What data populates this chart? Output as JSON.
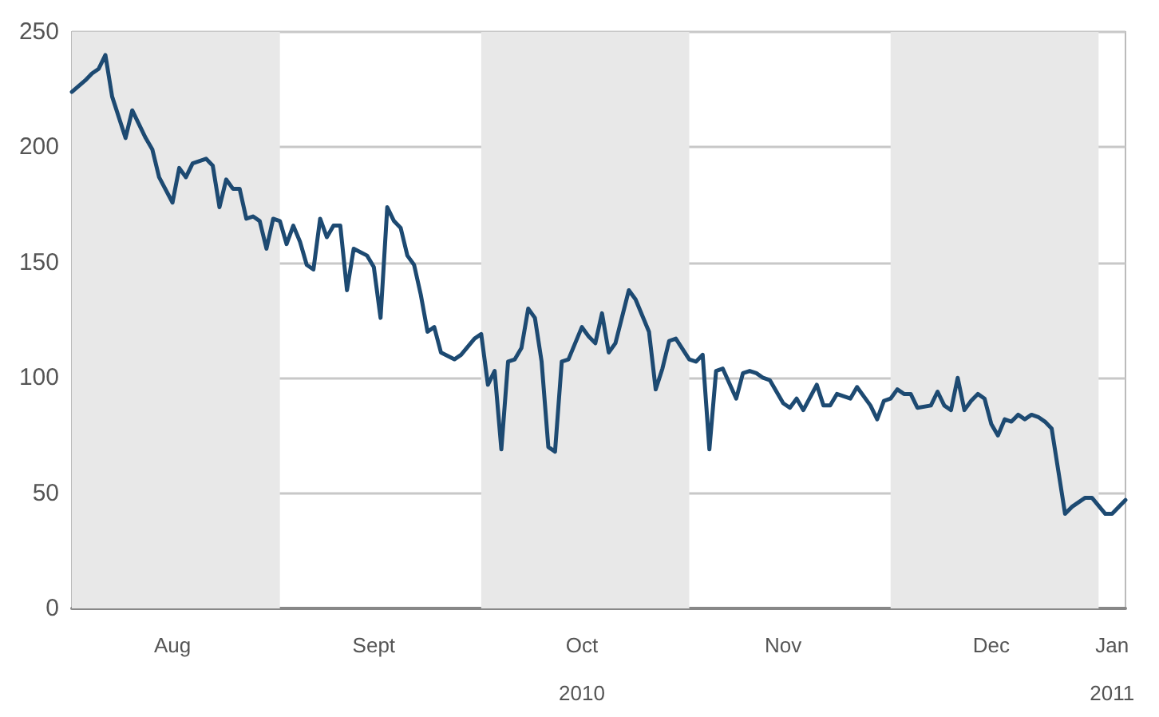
{
  "chart_data": {
    "type": "line",
    "line_style": "solid",
    "marker": "none",
    "grid": "y",
    "xlim": [
      "2010-08-01",
      "2011-01-05"
    ],
    "xticks": [
      {
        "value": "2010-08-16",
        "label": "Aug"
      },
      {
        "value": "2010-09-15",
        "label": "Sept"
      },
      {
        "value": "2010-10-16",
        "label": "Oct\n2010"
      },
      {
        "value": "2010-11-15",
        "label": "Nov"
      },
      {
        "value": "2010-12-16",
        "label": "Dec"
      },
      {
        "value": "2011-01-03",
        "label": "Jan\n2011"
      }
    ],
    "ylim": [
      0,
      250
    ],
    "yticks": [
      0,
      50,
      100,
      150,
      200,
      250
    ],
    "bands": [
      {
        "axis": "x",
        "from": "2010-08-01",
        "to": "2010-09-01",
        "color": "#e8e8e8"
      },
      {
        "axis": "x",
        "from": "2010-10-01",
        "to": "2010-11-01",
        "color": "#e8e8e8"
      },
      {
        "axis": "x",
        "from": "2010-12-01",
        "to": "2011-01-01",
        "color": "#e8e8e8"
      }
    ],
    "series": [
      {
        "color": "#1d4a72",
        "x": [
          "2010-08-01",
          "2010-08-03",
          "2010-08-04",
          "2010-08-05",
          "2010-08-06",
          "2010-08-07",
          "2010-08-09",
          "2010-08-10",
          "2010-08-12",
          "2010-08-13",
          "2010-08-14",
          "2010-08-16",
          "2010-08-17",
          "2010-08-18",
          "2010-08-19",
          "2010-08-21",
          "2010-08-22",
          "2010-08-23",
          "2010-08-24",
          "2010-08-25",
          "2010-08-26",
          "2010-08-27",
          "2010-08-28",
          "2010-08-29",
          "2010-08-30",
          "2010-08-31",
          "2010-09-01",
          "2010-09-02",
          "2010-09-03",
          "2010-09-04",
          "2010-09-05",
          "2010-09-06",
          "2010-09-07",
          "2010-09-08",
          "2010-09-09",
          "2010-09-10",
          "2010-09-11",
          "2010-09-12",
          "2010-09-14",
          "2010-09-15",
          "2010-09-16",
          "2010-09-17",
          "2010-09-18",
          "2010-09-19",
          "2010-09-20",
          "2010-09-21",
          "2010-09-22",
          "2010-09-23",
          "2010-09-24",
          "2010-09-25",
          "2010-09-27",
          "2010-09-28",
          "2010-09-30",
          "2010-10-01",
          "2010-10-02",
          "2010-10-03",
          "2010-10-04",
          "2010-10-05",
          "2010-10-06",
          "2010-10-07",
          "2010-10-08",
          "2010-10-09",
          "2010-10-10",
          "2010-10-11",
          "2010-10-12",
          "2010-10-13",
          "2010-10-14",
          "2010-10-16",
          "2010-10-17",
          "2010-10-18",
          "2010-10-19",
          "2010-10-20",
          "2010-10-21",
          "2010-10-23",
          "2010-10-24",
          "2010-10-26",
          "2010-10-27",
          "2010-10-28",
          "2010-10-29",
          "2010-10-30",
          "2010-11-01",
          "2010-11-02",
          "2010-11-03",
          "2010-11-04",
          "2010-11-05",
          "2010-11-06",
          "2010-11-08",
          "2010-11-09",
          "2010-11-10",
          "2010-11-11",
          "2010-11-12",
          "2010-11-13",
          "2010-11-15",
          "2010-11-16",
          "2010-11-17",
          "2010-11-18",
          "2010-11-20",
          "2010-11-21",
          "2010-11-22",
          "2010-11-23",
          "2010-11-25",
          "2010-11-26",
          "2010-11-28",
          "2010-11-29",
          "2010-11-30",
          "2010-12-01",
          "2010-12-02",
          "2010-12-03",
          "2010-12-04",
          "2010-12-05",
          "2010-12-07",
          "2010-12-08",
          "2010-12-09",
          "2010-12-10",
          "2010-12-11",
          "2010-12-12",
          "2010-12-13",
          "2010-12-14",
          "2010-12-15",
          "2010-12-16",
          "2010-12-17",
          "2010-12-18",
          "2010-12-19",
          "2010-12-20",
          "2010-12-21",
          "2010-12-22",
          "2010-12-23",
          "2010-12-24",
          "2010-12-25",
          "2010-12-27",
          "2010-12-28",
          "2010-12-30",
          "2010-12-31",
          "2011-01-02",
          "2011-01-03",
          "2011-01-05"
        ],
        "values": [
          224,
          229,
          232,
          234,
          240,
          222,
          204,
          216,
          204,
          199,
          187,
          176,
          191,
          187,
          193,
          195,
          192,
          174,
          186,
          182,
          182,
          169,
          170,
          168,
          156,
          169,
          168,
          158,
          166,
          159,
          149,
          147,
          169,
          161,
          166,
          166,
          138,
          156,
          153,
          148,
          126,
          174,
          168,
          165,
          153,
          149,
          136,
          120,
          122,
          111,
          108,
          110,
          117,
          119,
          97,
          103,
          69,
          107,
          108,
          113,
          130,
          126,
          107,
          70,
          68,
          107,
          108,
          122,
          118,
          115,
          128,
          111,
          115,
          138,
          134,
          120,
          95,
          104,
          116,
          117,
          108,
          107,
          110,
          69,
          103,
          104,
          91,
          102,
          103,
          102,
          100,
          99,
          89,
          87,
          91,
          86,
          97,
          88,
          88,
          93,
          91,
          96,
          88,
          82,
          90,
          91,
          95,
          93,
          93,
          87,
          88,
          94,
          88,
          86,
          100,
          86,
          90,
          93,
          91,
          80,
          75,
          82,
          81,
          84,
          82,
          84,
          83,
          81,
          78,
          41,
          44,
          48,
          48,
          41,
          41,
          47
        ]
      }
    ]
  }
}
